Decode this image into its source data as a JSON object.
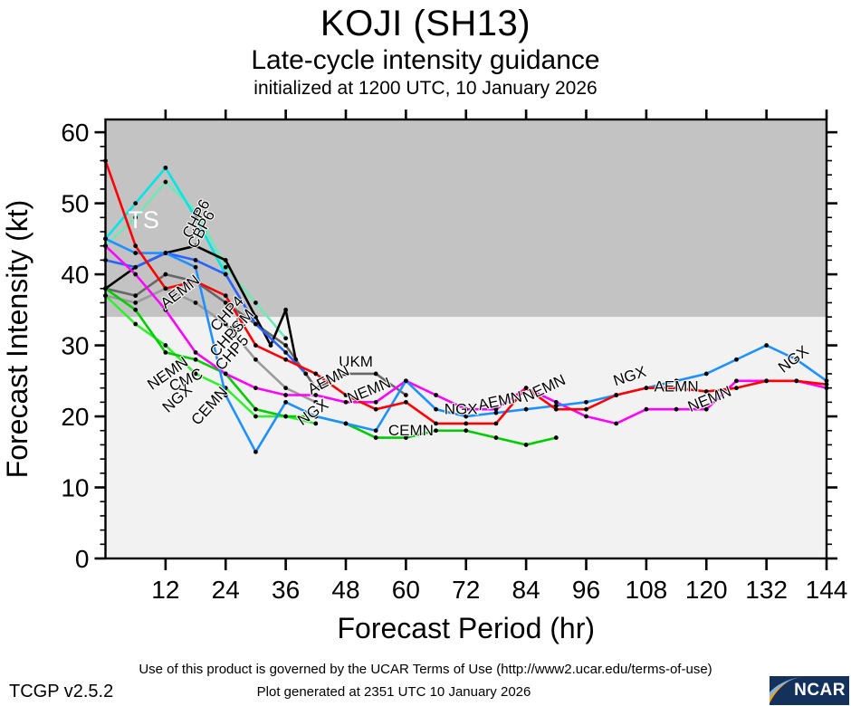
{
  "header": {
    "title": "KOJI (SH13)",
    "subtitle": "Late-cycle intensity guidance",
    "init_line": "initialized at 1200 UTC, 10 January 2026"
  },
  "footer": {
    "version": "TCGP v2.5.2",
    "terms": "Use of this product is governed by the UCAR Terms of Use (http://www2.ucar.edu/terms-of-use)",
    "generated": "Plot generated at 2351 UTC   10 January 2026",
    "logo_text": "NCAR"
  },
  "chart_data": {
    "type": "line",
    "title": "KOJI (SH13)",
    "subtitle": "Late-cycle intensity guidance",
    "init_line": "initialized at 1200 UTC, 10 January 2026",
    "xlabel": "Forecast Period (hr)",
    "ylabel": "Forecast Intensity (kt)",
    "x_ticks": [
      12,
      24,
      36,
      48,
      60,
      72,
      84,
      96,
      108,
      120,
      132,
      144
    ],
    "y_ticks": [
      0,
      10,
      20,
      30,
      40,
      50,
      60
    ],
    "xlim": [
      0,
      144
    ],
    "ylim": [
      0,
      61.8
    ],
    "grid": false,
    "ts_region": {
      "label": "TS",
      "threshold_kt": 34,
      "band_color": "#c3c3c3",
      "below_color": "#f2f2f2",
      "label_color": "#ffffff"
    },
    "series": [
      {
        "name": "CBP6",
        "color": "#6fe8b8",
        "points": [
          [
            0,
            44
          ],
          [
            6,
            48
          ],
          [
            12,
            53
          ],
          [
            18,
            49
          ],
          [
            24,
            41
          ],
          [
            30,
            36
          ],
          [
            36,
            31
          ]
        ]
      },
      {
        "name": "CHP6",
        "color": "#00e5e5",
        "points": [
          [
            0,
            45
          ],
          [
            6,
            50
          ],
          [
            12,
            55
          ],
          [
            18,
            48
          ],
          [
            24,
            40
          ]
        ]
      },
      {
        "name": "CMC",
        "color": "#9a9a9a",
        "points": [
          [
            0,
            37
          ],
          [
            6,
            36
          ],
          [
            12,
            38
          ],
          [
            18,
            36
          ],
          [
            24,
            33
          ],
          [
            30,
            28
          ],
          [
            36,
            24
          ],
          [
            42,
            22
          ]
        ]
      },
      {
        "name": "UKM",
        "color": "#666666",
        "points": [
          [
            0,
            38
          ],
          [
            6,
            37
          ],
          [
            12,
            40
          ],
          [
            18,
            39
          ],
          [
            24,
            36
          ],
          [
            30,
            33
          ],
          [
            36,
            30
          ],
          [
            42,
            24
          ],
          [
            48,
            26
          ],
          [
            54,
            26
          ],
          [
            60,
            23
          ]
        ]
      },
      {
        "name": "CHP4",
        "color": "#000000",
        "points": [
          [
            0,
            38
          ],
          [
            6,
            41
          ],
          [
            12,
            43
          ],
          [
            18,
            44
          ],
          [
            24,
            42
          ],
          [
            30,
            34
          ],
          [
            33,
            30
          ],
          [
            36,
            35
          ],
          [
            38,
            28
          ]
        ]
      },
      {
        "name": "CHP5",
        "color": "#2962ff",
        "points": [
          [
            0,
            42
          ],
          [
            6,
            41
          ],
          [
            12,
            43
          ],
          [
            18,
            42
          ],
          [
            24,
            40
          ],
          [
            30,
            33
          ],
          [
            36,
            29
          ],
          [
            40,
            26
          ]
        ]
      },
      {
        "name": "",
        "color": "#33ee33",
        "points": [
          [
            0,
            37
          ],
          [
            6,
            33
          ],
          [
            12,
            30
          ],
          [
            18,
            26
          ],
          [
            24,
            24
          ],
          [
            30,
            20
          ],
          [
            36,
            20
          ],
          [
            42,
            19
          ]
        ]
      },
      {
        "name": "CEMN",
        "color": "#00cc00",
        "points": [
          [
            0,
            38
          ],
          [
            6,
            35
          ],
          [
            12,
            29
          ],
          [
            18,
            28
          ],
          [
            24,
            26
          ],
          [
            30,
            21
          ],
          [
            36,
            20
          ],
          [
            42,
            20
          ],
          [
            48,
            19
          ],
          [
            54,
            17
          ],
          [
            60,
            17
          ],
          [
            66,
            18
          ],
          [
            72,
            18
          ],
          [
            78,
            17
          ],
          [
            84,
            16
          ],
          [
            90,
            17
          ]
        ]
      },
      {
        "name": "NEMN",
        "color": "#ff00ff",
        "points": [
          [
            0,
            44
          ],
          [
            6,
            40
          ],
          [
            12,
            35
          ],
          [
            18,
            29
          ],
          [
            24,
            26
          ],
          [
            30,
            24
          ],
          [
            36,
            23
          ],
          [
            42,
            23
          ],
          [
            48,
            22
          ],
          [
            54,
            22
          ],
          [
            60,
            25
          ],
          [
            66,
            23
          ],
          [
            72,
            21
          ],
          [
            78,
            21
          ],
          [
            84,
            24
          ],
          [
            90,
            22
          ],
          [
            96,
            20
          ],
          [
            102,
            19
          ],
          [
            108,
            21
          ],
          [
            114,
            21
          ],
          [
            120,
            21
          ],
          [
            126,
            25
          ],
          [
            132,
            25
          ],
          [
            138,
            25
          ],
          [
            144,
            24
          ]
        ]
      },
      {
        "name": "NGX",
        "color": "#1e90ff",
        "points": [
          [
            0,
            45
          ],
          [
            6,
            43
          ],
          [
            12,
            43
          ],
          [
            18,
            41
          ],
          [
            24,
            23
          ],
          [
            30,
            15
          ],
          [
            36,
            22
          ],
          [
            42,
            20
          ],
          [
            48,
            19
          ],
          [
            54,
            18
          ],
          [
            60,
            25
          ],
          [
            66,
            21
          ],
          [
            72,
            20
          ],
          [
            78,
            20.5
          ],
          [
            84,
            21
          ],
          [
            90,
            21.5
          ],
          [
            96,
            22
          ],
          [
            102,
            23
          ],
          [
            108,
            24
          ],
          [
            114,
            25
          ],
          [
            120,
            26
          ],
          [
            126,
            28
          ],
          [
            132,
            30
          ],
          [
            138,
            28
          ],
          [
            144,
            25
          ]
        ]
      },
      {
        "name": "AEMN",
        "color": "#ff0000",
        "points": [
          [
            0,
            56
          ],
          [
            6,
            44
          ],
          [
            12,
            38
          ],
          [
            18,
            39
          ],
          [
            24,
            37
          ],
          [
            30,
            30
          ],
          [
            36,
            28
          ],
          [
            42,
            26
          ],
          [
            48,
            23
          ],
          [
            54,
            21
          ],
          [
            60,
            22
          ],
          [
            66,
            19
          ],
          [
            72,
            19
          ],
          [
            78,
            19
          ],
          [
            84,
            24
          ],
          [
            90,
            21
          ],
          [
            96,
            21
          ],
          [
            102,
            23
          ],
          [
            108,
            24
          ],
          [
            114,
            24
          ],
          [
            120,
            23.5
          ],
          [
            126,
            24
          ],
          [
            132,
            25
          ],
          [
            138,
            25
          ],
          [
            144,
            24.5
          ]
        ]
      }
    ],
    "line_labels": [
      {
        "text": "CHP6",
        "hr": 19,
        "kt": 47.5,
        "rot": -62
      },
      {
        "text": "CBP6",
        "hr": 20,
        "kt": 46,
        "rot": -62
      },
      {
        "text": "AEMN",
        "hr": 15.5,
        "kt": 37,
        "rot": -38
      },
      {
        "text": "CHP4",
        "hr": 25,
        "kt": 34,
        "rot": -48
      },
      {
        "text": "UKM",
        "hr": 27.5,
        "kt": 32.5,
        "rot": -48
      },
      {
        "text": "CHPS",
        "hr": 25,
        "kt": 30.5,
        "rot": -48
      },
      {
        "text": "CHP5",
        "hr": 26,
        "kt": 28.5,
        "rot": -48
      },
      {
        "text": "NEMN",
        "hr": 13,
        "kt": 25.5,
        "rot": -35
      },
      {
        "text": "CMC",
        "hr": 16.5,
        "kt": 24.5,
        "rot": -25
      },
      {
        "text": "NGX",
        "hr": 15,
        "kt": 22,
        "rot": -42
      },
      {
        "text": "CEMN",
        "hr": 21.5,
        "kt": 21,
        "rot": -48
      },
      {
        "text": "UKM",
        "hr": 50,
        "kt": 27,
        "rot": 0
      },
      {
        "text": "AEMN",
        "hr": 45,
        "kt": 24.5,
        "rot": -28
      },
      {
        "text": "NEMN",
        "hr": 53,
        "kt": 23,
        "rot": -22
      },
      {
        "text": "NGX",
        "hr": 42,
        "kt": 20,
        "rot": -35
      },
      {
        "text": "CEMN",
        "hr": 61,
        "kt": 17.3,
        "rot": 0
      },
      {
        "text": "NGX",
        "hr": 71,
        "kt": 20.3,
        "rot": 0
      },
      {
        "text": "AEMN",
        "hr": 79,
        "kt": 21.5,
        "rot": -12
      },
      {
        "text": "NEMN",
        "hr": 88,
        "kt": 23.3,
        "rot": -25
      },
      {
        "text": "NGX",
        "hr": 105,
        "kt": 25,
        "rot": -18
      },
      {
        "text": "AEMN",
        "hr": 114,
        "kt": 23.5,
        "rot": 0
      },
      {
        "text": "NEMN",
        "hr": 121,
        "kt": 21.8,
        "rot": -22
      },
      {
        "text": "NGX",
        "hr": 138,
        "kt": 27.5,
        "rot": -38
      }
    ]
  }
}
